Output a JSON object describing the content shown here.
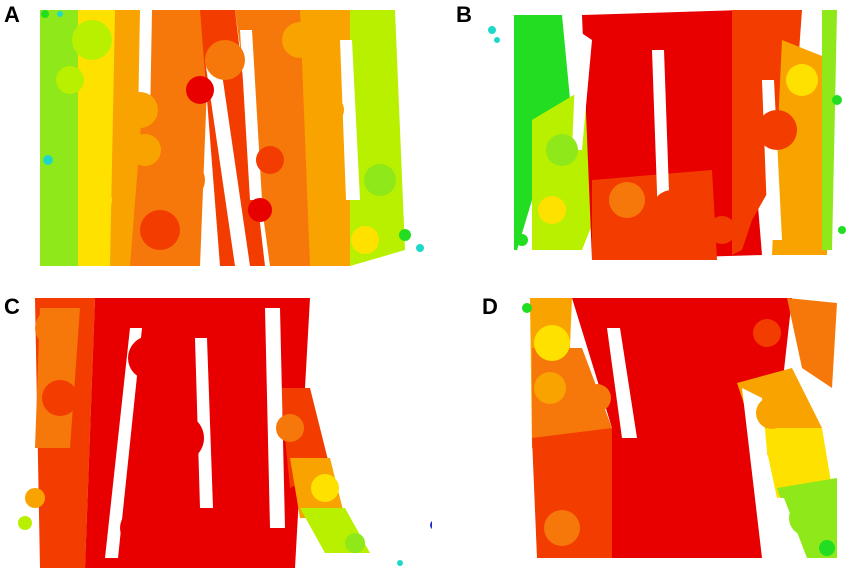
{
  "panels": [
    {
      "id": "A",
      "label": "A"
    },
    {
      "id": "B",
      "label": "B"
    },
    {
      "id": "C",
      "label": "C"
    },
    {
      "id": "D",
      "label": "D"
    }
  ],
  "colors": {
    "red": "#e80000",
    "red_orange": "#f23c00",
    "orange": "#f7780a",
    "amber": "#f9a300",
    "yellow": "#ffe100",
    "lime": "#b8f000",
    "yellow_green": "#8fe81a",
    "green": "#22dd22",
    "cyan": "#20d8c8",
    "blue": "#1e2ec8"
  }
}
